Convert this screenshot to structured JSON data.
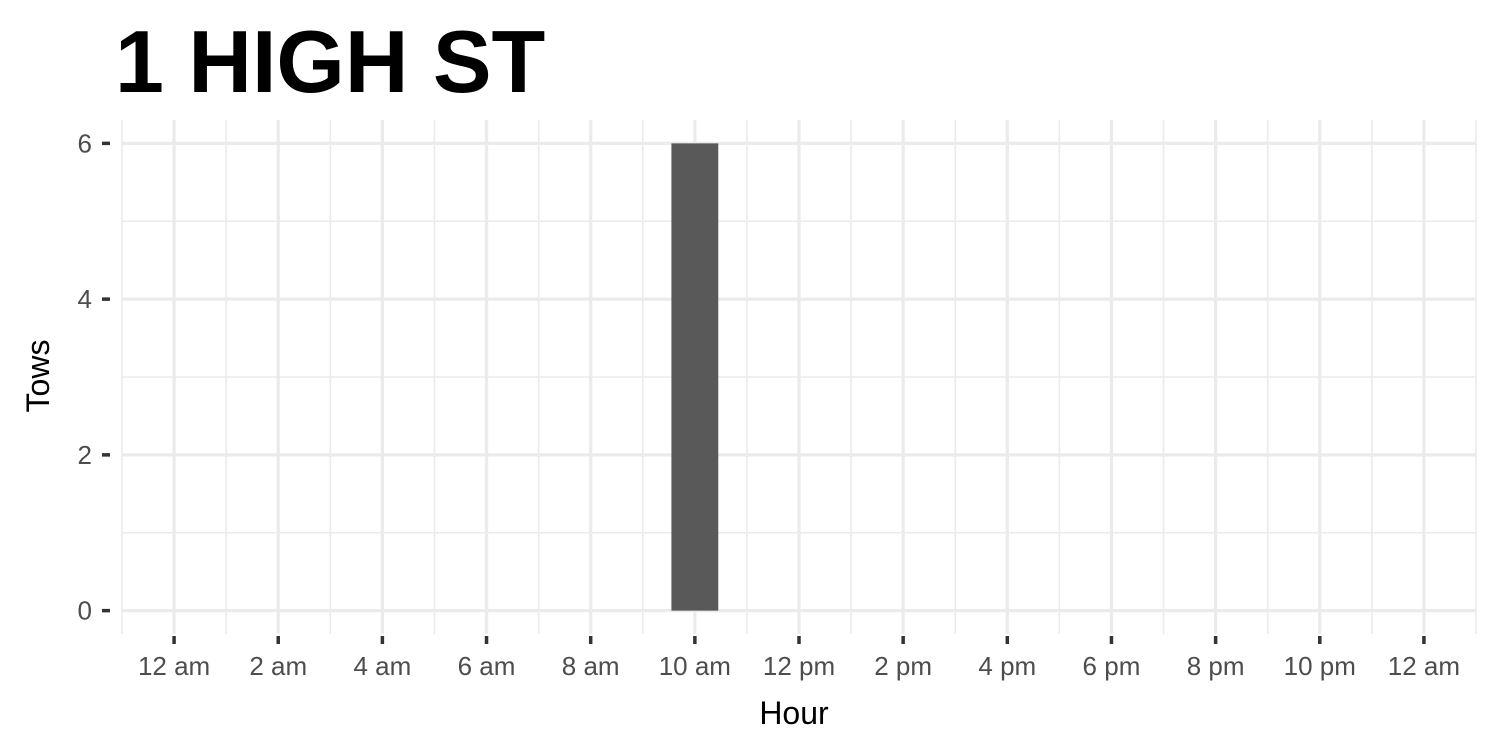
{
  "chart_data": {
    "type": "bar",
    "title": "1 HIGH ST",
    "xlabel": "Hour",
    "ylabel": "Tows",
    "x_tick_hours": [
      0,
      2,
      4,
      6,
      8,
      10,
      12,
      14,
      16,
      18,
      20,
      22,
      24
    ],
    "x_tick_labels": [
      "12 am",
      "2 am",
      "4 am",
      "6 am",
      "8 am",
      "10 am",
      "12 pm",
      "2 pm",
      "4 pm",
      "6 pm",
      "8 pm",
      "10 pm",
      "12 am"
    ],
    "y_ticks": [
      0,
      2,
      4,
      6
    ],
    "y_tick_labels": [
      "0",
      "2",
      "4",
      "6"
    ],
    "xlim": [
      -1,
      25
    ],
    "ylim": [
      -0.3,
      6.3
    ],
    "grid": true,
    "bars": [
      {
        "hour": 10,
        "value": 6
      }
    ],
    "colors": {
      "bar": "#595959",
      "grid": "#ebebeb",
      "tick": "#333333"
    }
  }
}
